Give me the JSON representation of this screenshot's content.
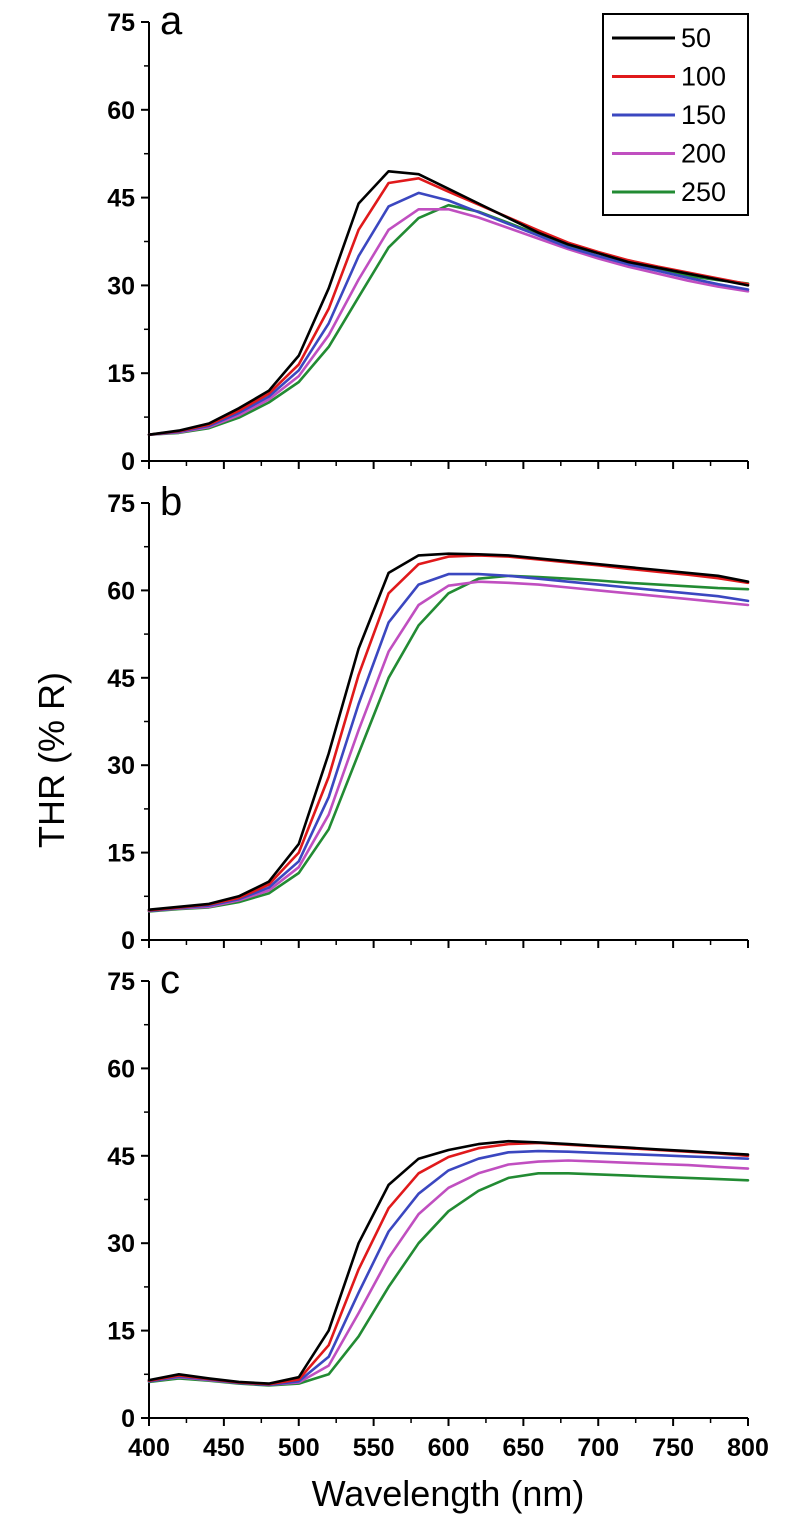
{
  "chart_data": {
    "type": "line",
    "ylabel": "THR (% R)",
    "xlabel": "Wavelength (nm)",
    "xlim": [
      400,
      800
    ],
    "ylim": [
      0,
      75
    ],
    "x_ticks": [
      "400",
      "450",
      "500",
      "550",
      "600",
      "650",
      "700",
      "750",
      "800"
    ],
    "y_ticks": [
      "0",
      "15",
      "30",
      "45",
      "60",
      "75"
    ],
    "legend": {
      "placement": "top-right",
      "panel": "a",
      "entries": [
        "50",
        "100",
        "150",
        "200",
        "250"
      ]
    },
    "colors": {
      "50": "#000000",
      "100": "#e0191b",
      "150": "#3b47c0",
      "200": "#c04fc0",
      "250": "#228b33"
    },
    "grid": false,
    "x": [
      400,
      420,
      440,
      460,
      480,
      500,
      520,
      540,
      560,
      580,
      600,
      620,
      640,
      660,
      680,
      700,
      720,
      740,
      760,
      780,
      800
    ],
    "panels": [
      {
        "label": "a",
        "series": [
          {
            "name": "50",
            "values": [
              4.5,
              5.2,
              6.4,
              9.0,
              12.0,
              18.0,
              29.5,
              44.0,
              49.5,
              49.0,
              46.5,
              44.0,
              41.5,
              39.0,
              37.0,
              35.5,
              34.0,
              33.0,
              32.0,
              31.0,
              30.0
            ]
          },
          {
            "name": "100",
            "values": [
              4.5,
              5.1,
              6.2,
              8.6,
              11.5,
              16.5,
              26.0,
              39.5,
              47.5,
              48.3,
              46.0,
              43.8,
              41.6,
              39.4,
              37.3,
              35.7,
              34.3,
              33.2,
              32.2,
              31.2,
              30.2
            ]
          },
          {
            "name": "150",
            "values": [
              4.5,
              5.0,
              6.0,
              8.2,
              11.0,
              15.5,
              23.5,
              35.0,
              43.5,
              45.8,
              44.5,
              42.5,
              40.5,
              38.5,
              36.5,
              35.0,
              33.6,
              32.5,
              31.3,
              30.2,
              29.3
            ]
          },
          {
            "name": "200",
            "values": [
              4.5,
              4.9,
              5.8,
              7.8,
              10.5,
              14.5,
              21.5,
              31.0,
              39.5,
              43.0,
              43.0,
              41.6,
              39.8,
              38.0,
              36.2,
              34.6,
              33.2,
              32.0,
              30.8,
              29.8,
              29.0
            ]
          },
          {
            "name": "250",
            "values": [
              4.5,
              4.8,
              5.6,
              7.4,
              10.0,
              13.5,
              19.5,
              28.0,
              36.5,
              41.5,
              43.7,
              42.6,
              40.7,
              38.7,
              36.7,
              35.0,
              33.7,
              32.6,
              31.6,
              30.9,
              30.3
            ]
          }
        ]
      },
      {
        "label": "b",
        "series": [
          {
            "name": "50",
            "values": [
              5.2,
              5.7,
              6.2,
              7.5,
              10.0,
              16.5,
              32.0,
              50.0,
              63.0,
              66.0,
              66.3,
              66.2,
              66.0,
              65.5,
              65.0,
              64.5,
              64.0,
              63.5,
              63.0,
              62.5,
              61.5
            ]
          },
          {
            "name": "100",
            "values": [
              5.1,
              5.6,
              6.1,
              7.2,
              9.5,
              15.0,
              28.0,
              45.5,
              59.5,
              64.5,
              65.8,
              66.0,
              65.8,
              65.3,
              64.8,
              64.3,
              63.7,
              63.2,
              62.7,
              62.1,
              61.3
            ]
          },
          {
            "name": "150",
            "values": [
              5.0,
              5.5,
              5.9,
              7.0,
              9.0,
              13.5,
              24.5,
              40.5,
              54.5,
              61.0,
              62.8,
              62.8,
              62.5,
              62.0,
              61.5,
              61.0,
              60.5,
              60.0,
              59.5,
              59.0,
              58.2
            ]
          },
          {
            "name": "200",
            "values": [
              5.0,
              5.4,
              5.7,
              6.8,
              8.5,
              12.5,
              21.5,
              36.0,
              49.5,
              57.5,
              60.8,
              61.5,
              61.3,
              61.0,
              60.5,
              60.0,
              59.5,
              59.0,
              58.5,
              58.0,
              57.5
            ]
          },
          {
            "name": "250",
            "values": [
              4.9,
              5.3,
              5.6,
              6.5,
              8.0,
              11.5,
              19.0,
              32.0,
              45.0,
              54.0,
              59.5,
              62.0,
              62.5,
              62.3,
              62.0,
              61.7,
              61.3,
              61.0,
              60.7,
              60.4,
              60.2
            ]
          }
        ]
      },
      {
        "label": "c",
        "series": [
          {
            "name": "50",
            "values": [
              6.5,
              7.5,
              6.8,
              6.2,
              5.9,
              7.0,
              15.0,
              30.0,
              40.0,
              44.5,
              46.0,
              47.0,
              47.5,
              47.3,
              47.0,
              46.7,
              46.4,
              46.1,
              45.8,
              45.5,
              45.2
            ]
          },
          {
            "name": "100",
            "values": [
              6.4,
              7.3,
              6.7,
              6.1,
              5.8,
              6.6,
              12.5,
              25.5,
              36.0,
              42.0,
              44.8,
              46.3,
              47.0,
              47.2,
              46.9,
              46.6,
              46.3,
              46.0,
              45.7,
              45.4,
              45.0
            ]
          },
          {
            "name": "150",
            "values": [
              6.3,
              7.1,
              6.6,
              6.0,
              5.7,
              6.3,
              10.5,
              21.5,
              32.0,
              38.5,
              42.5,
              44.5,
              45.6,
              45.8,
              45.7,
              45.5,
              45.3,
              45.1,
              44.9,
              44.7,
              44.5
            ]
          },
          {
            "name": "200",
            "values": [
              6.3,
              7.0,
              6.5,
              6.0,
              5.7,
              6.1,
              9.0,
              18.0,
              27.5,
              35.0,
              39.5,
              42.0,
              43.5,
              44.0,
              44.2,
              44.0,
              43.8,
              43.6,
              43.4,
              43.1,
              42.8
            ]
          },
          {
            "name": "250",
            "values": [
              6.2,
              6.8,
              6.4,
              5.9,
              5.6,
              5.9,
              7.5,
              14.0,
              22.5,
              30.0,
              35.5,
              39.0,
              41.2,
              42.0,
              42.0,
              41.8,
              41.6,
              41.4,
              41.2,
              41.0,
              40.8
            ]
          }
        ]
      }
    ]
  }
}
